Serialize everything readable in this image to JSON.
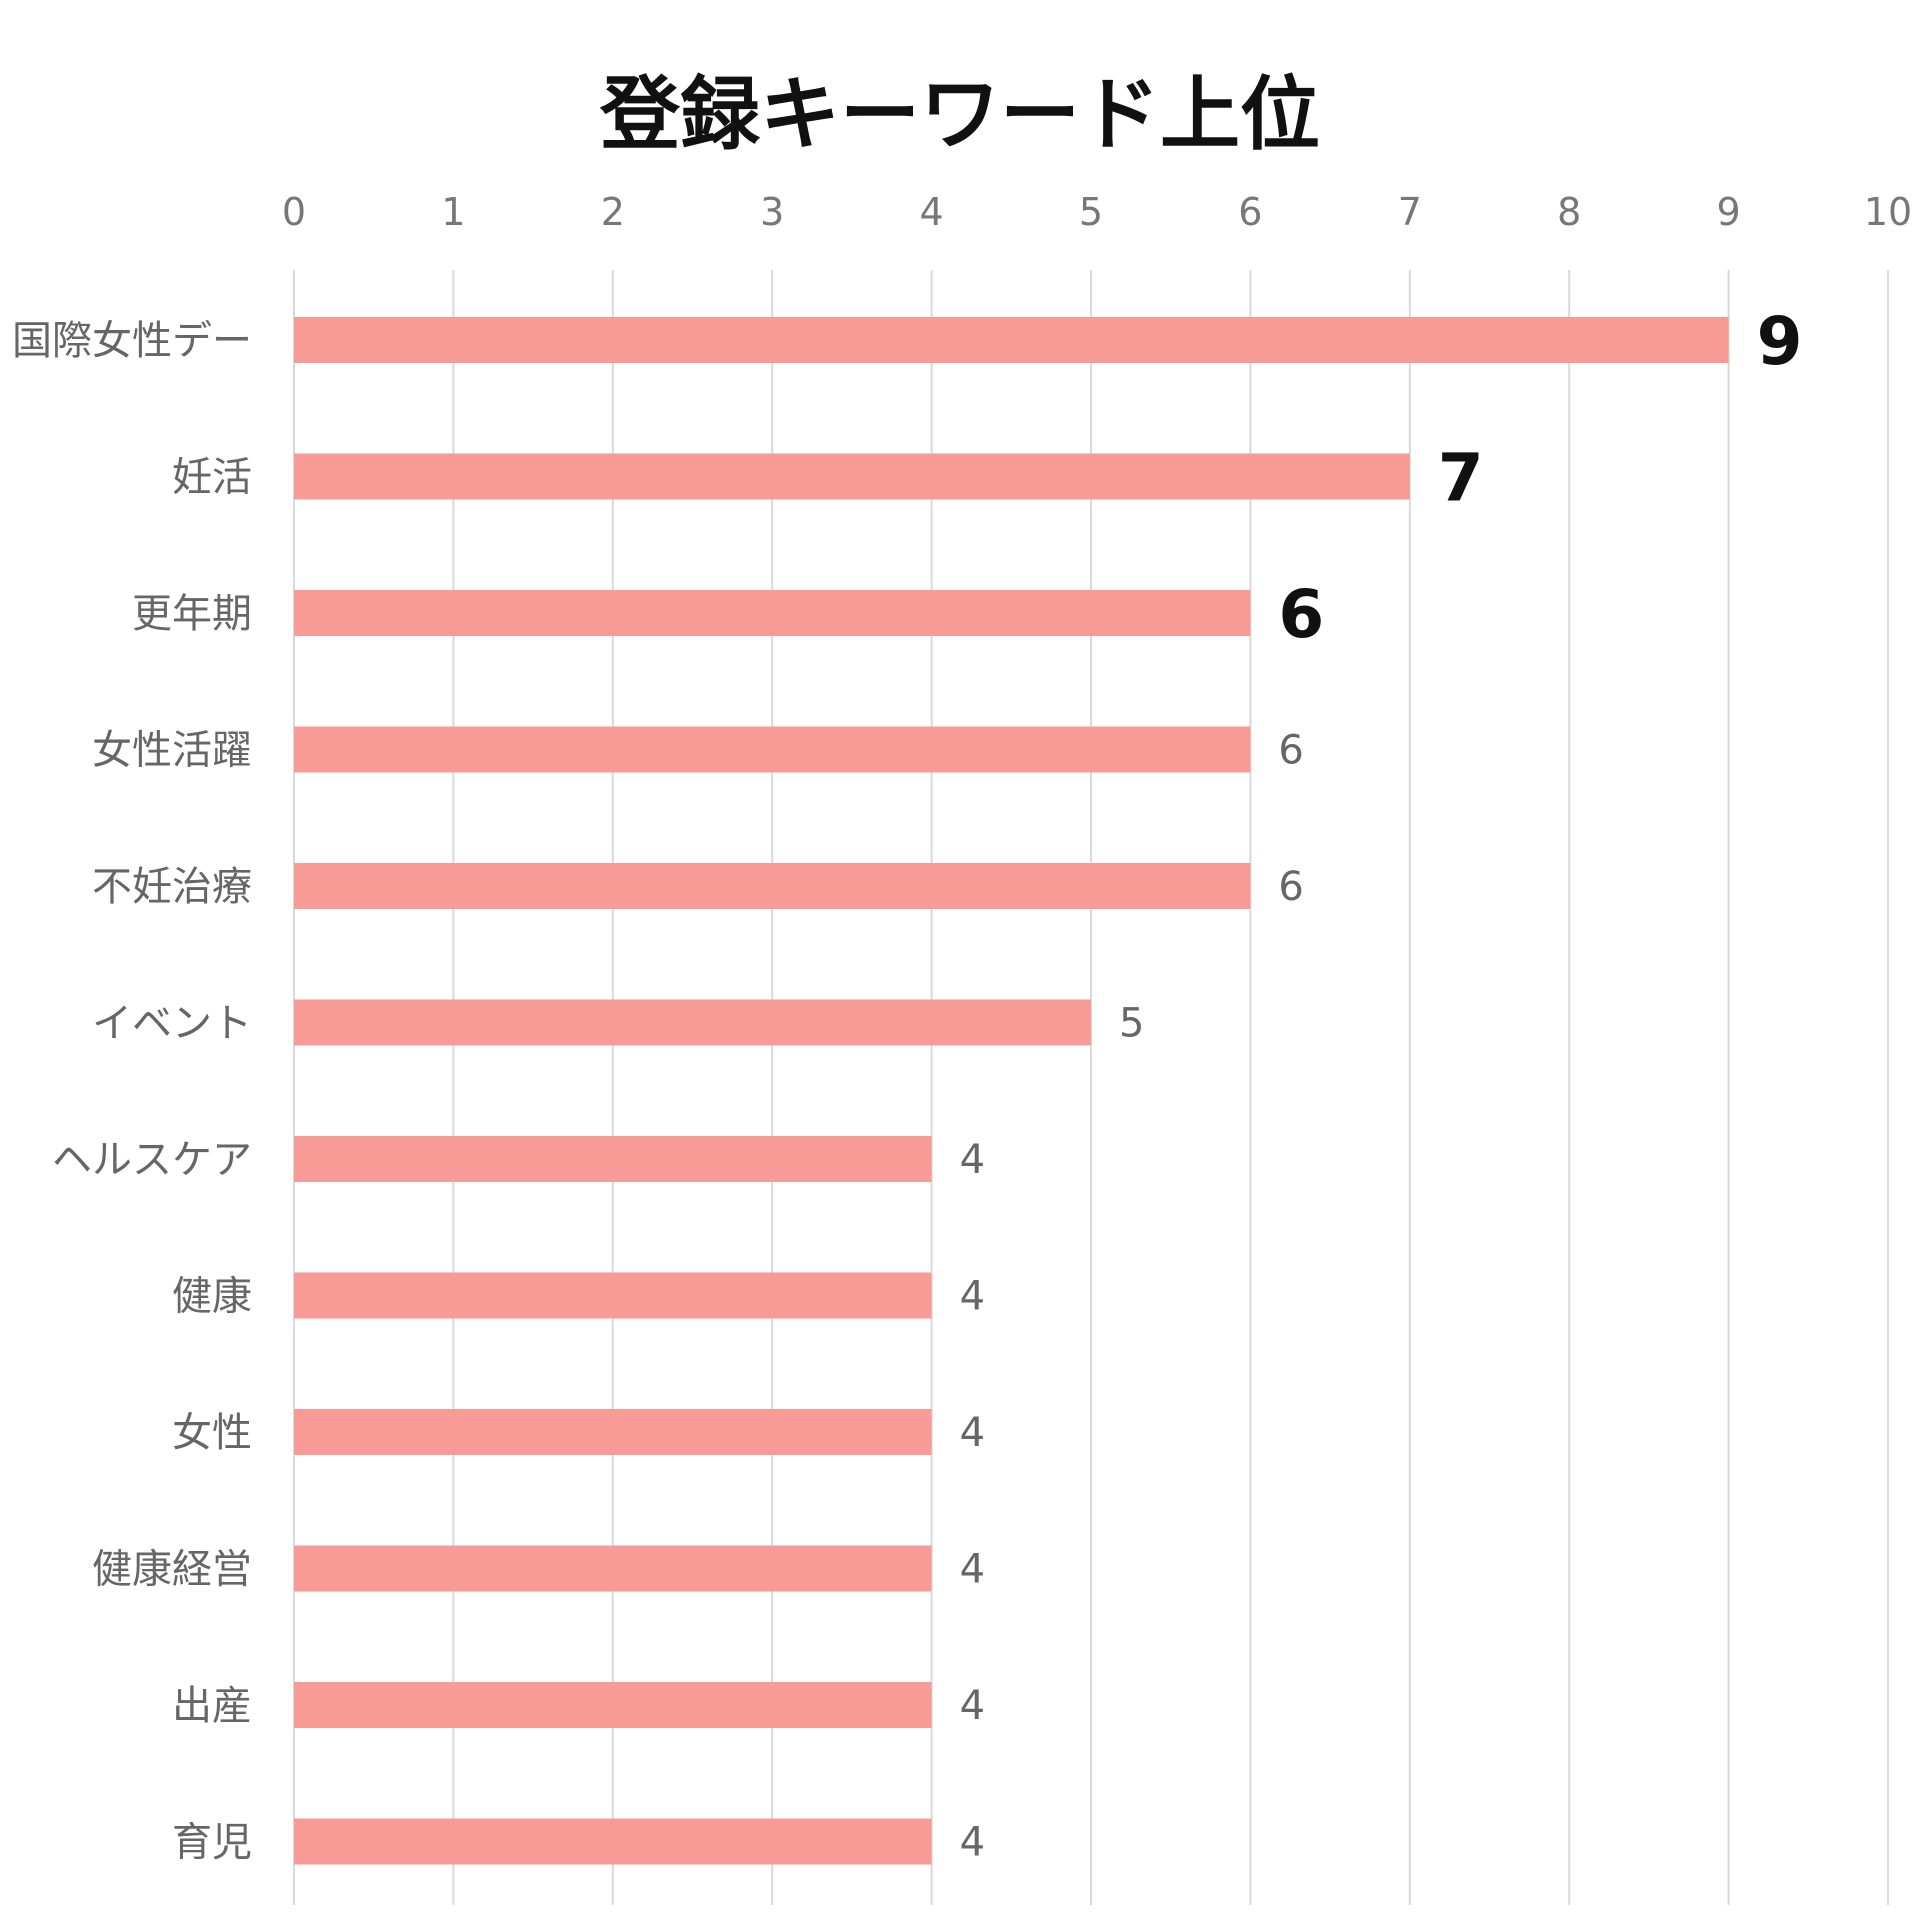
{
  "chart_data": {
    "type": "bar",
    "orientation": "horizontal",
    "title": "登録キーワード上位",
    "categories": [
      "国際女性デー",
      "妊活",
      "更年期",
      "女性活躍",
      "不妊治療",
      "イベント",
      "ヘルスケア",
      "健康",
      "女性",
      "健康経営",
      "出産",
      "育児"
    ],
    "values": [
      9,
      7,
      6,
      6,
      6,
      5,
      4,
      4,
      4,
      4,
      4,
      4
    ],
    "emphasized_labels": [
      0,
      1,
      2
    ],
    "xlim": [
      0,
      10
    ],
    "x_ticks": [
      "0",
      "1",
      "2",
      "3",
      "4",
      "5",
      "6",
      "7",
      "8",
      "9",
      "10"
    ],
    "axis_position": "top",
    "grid": true,
    "xlabel": "",
    "ylabel": "",
    "colors": {
      "bar": "#F89A96",
      "grid": "#D9D9D9",
      "category_text": "#666666",
      "tick_text": "#777777",
      "value_text": "#666666",
      "value_text_emphasis": "#111111"
    }
  }
}
